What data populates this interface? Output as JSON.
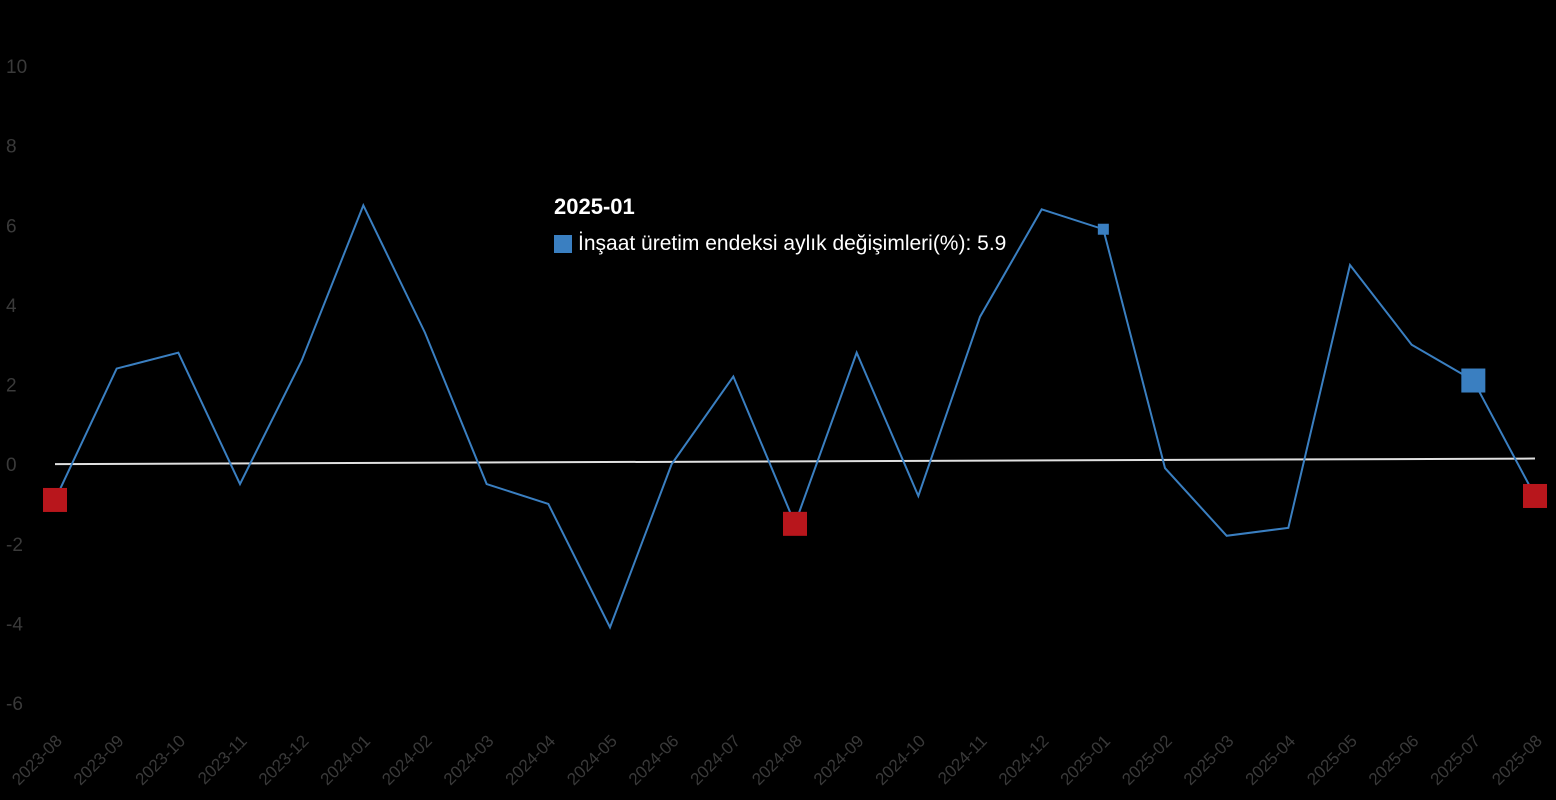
{
  "chart_data": {
    "type": "line",
    "x": [
      "2023-08",
      "2023-09",
      "2023-10",
      "2023-11",
      "2023-12",
      "2024-01",
      "2024-02",
      "2024-03",
      "2024-04",
      "2024-05",
      "2024-06",
      "2024-07",
      "2024-08",
      "2024-09",
      "2024-10",
      "2024-11",
      "2024-12",
      "2025-01",
      "2025-02",
      "2025-03",
      "2025-04",
      "2025-05",
      "2025-06",
      "2025-07",
      "2025-08"
    ],
    "series": [
      {
        "name": "İnşaat üretim endeksi aylık değişimleri(%)",
        "color": "#3a7fc1",
        "values": [
          -0.9,
          2.4,
          2.8,
          -0.5,
          2.6,
          6.5,
          3.3,
          -0.5,
          -1.0,
          -4.1,
          0.0,
          2.2,
          -1.5,
          2.8,
          -0.8,
          3.7,
          6.4,
          5.9,
          -0.1,
          -1.8,
          -1.6,
          5.0,
          3.0,
          2.1,
          -0.8
        ]
      }
    ],
    "ylim": [
      -6,
      10
    ],
    "yticks": [
      -6,
      -4,
      -2,
      0,
      2,
      4,
      6,
      8,
      10
    ],
    "trend": {
      "color": "#e0e0e0",
      "start": 0.0,
      "end": 0.14
    },
    "markers": [
      {
        "index": 0,
        "color": "#b8161c"
      },
      {
        "index": 12,
        "color": "#b8161c"
      },
      {
        "index": 24,
        "color": "#b8161c"
      },
      {
        "index": 23,
        "color": "#3a7fc1"
      },
      {
        "index": 17,
        "color": "#3a7fc1"
      }
    ],
    "colors": {
      "background": "#000000",
      "axis_text": "#3a3a3a",
      "tooltip_text": "#ffffff"
    }
  },
  "tooltip": {
    "title": "2025-01",
    "label": "İnşaat üretim endeksi aylık değişimleri(%)",
    "value": "5.9",
    "swatch_color": "#3a7fc1"
  }
}
